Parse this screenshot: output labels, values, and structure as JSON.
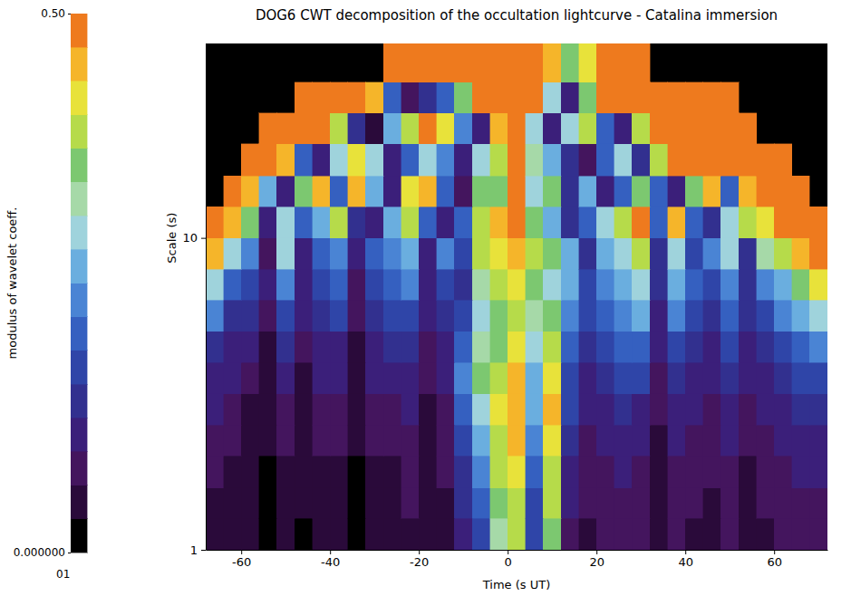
{
  "chart_data": {
    "type": "heatmap",
    "title": "DOG6 CWT decomposition of the occultation lightcurve - Catalina immersion",
    "x_label": "Time (s UT)",
    "y_label": "Scale (s)",
    "xlim": [
      -68,
      72
    ],
    "ylim": [
      1,
      42
    ],
    "xticks": [
      -60,
      -40,
      -20,
      0,
      20,
      40,
      60
    ],
    "yticks": [
      1,
      10
    ],
    "log": "y",
    "x_edges": [
      -68,
      -64,
      -60,
      -56,
      -52,
      -48,
      -44,
      -40,
      -36,
      -32,
      -28,
      -24,
      -20,
      -16,
      -12,
      -8,
      -4,
      0,
      4,
      8,
      12,
      16,
      20,
      24,
      28,
      32,
      36,
      40,
      44,
      48,
      52,
      56,
      60,
      64,
      68,
      72
    ],
    "y_edges": [
      1,
      1.26,
      1.58,
      2,
      2.51,
      3.16,
      3.98,
      5.01,
      6.31,
      7.94,
      10,
      12.6,
      15.8,
      20,
      25.1,
      31.6,
      42
    ],
    "z": [
      [
        0.05,
        0.05,
        0.04,
        0.03,
        0.05,
        0.03,
        0.05,
        0.05,
        0.03,
        0.05,
        0.05,
        0.06,
        0.04,
        0.05,
        0.12,
        0.18,
        0.32,
        0.38,
        0.16,
        0.35,
        0.09,
        0.06,
        0.07,
        0.08,
        0.07,
        0.04,
        0.07,
        0.06,
        0.05,
        0.07,
        0.05,
        0.06,
        0.07,
        0.08,
        0.08
      ],
      [
        0.06,
        0.05,
        0.04,
        0.03,
        0.05,
        0.04,
        0.05,
        0.05,
        0.03,
        0.05,
        0.05,
        0.07,
        0.04,
        0.06,
        0.13,
        0.2,
        0.35,
        0.4,
        0.18,
        0.38,
        0.1,
        0.07,
        0.08,
        0.09,
        0.08,
        0.05,
        0.08,
        0.07,
        0.06,
        0.08,
        0.05,
        0.07,
        0.08,
        0.09,
        0.09
      ],
      [
        0.07,
        0.06,
        0.05,
        0.03,
        0.06,
        0.04,
        0.06,
        0.06,
        0.03,
        0.06,
        0.06,
        0.08,
        0.05,
        0.07,
        0.15,
        0.22,
        0.38,
        0.42,
        0.2,
        0.4,
        0.12,
        0.08,
        0.09,
        0.1,
        0.09,
        0.05,
        0.09,
        0.08,
        0.07,
        0.09,
        0.06,
        0.08,
        0.09,
        0.1,
        0.1
      ],
      [
        0.08,
        0.07,
        0.05,
        0.04,
        0.07,
        0.04,
        0.07,
        0.07,
        0.04,
        0.07,
        0.07,
        0.09,
        0.05,
        0.08,
        0.18,
        0.25,
        0.4,
        0.44,
        0.22,
        0.42,
        0.14,
        0.09,
        0.1,
        0.12,
        0.1,
        0.06,
        0.1,
        0.09,
        0.08,
        0.1,
        0.07,
        0.09,
        0.1,
        0.12,
        0.12
      ],
      [
        0.1,
        0.08,
        0.06,
        0.04,
        0.08,
        0.05,
        0.08,
        0.08,
        0.04,
        0.08,
        0.08,
        0.1,
        0.06,
        0.09,
        0.2,
        0.3,
        0.42,
        0.45,
        0.25,
        0.44,
        0.16,
        0.1,
        0.12,
        0.14,
        0.12,
        0.07,
        0.12,
        0.1,
        0.09,
        0.12,
        0.08,
        0.1,
        0.12,
        0.14,
        0.15
      ],
      [
        0.12,
        0.1,
        0.08,
        0.05,
        0.1,
        0.06,
        0.1,
        0.1,
        0.05,
        0.1,
        0.1,
        0.12,
        0.07,
        0.1,
        0.22,
        0.35,
        0.4,
        0.45,
        0.28,
        0.42,
        0.18,
        0.12,
        0.15,
        0.16,
        0.16,
        0.08,
        0.15,
        0.12,
        0.1,
        0.14,
        0.1,
        0.12,
        0.15,
        0.16,
        0.18
      ],
      [
        0.15,
        0.12,
        0.1,
        0.06,
        0.14,
        0.08,
        0.12,
        0.12,
        0.06,
        0.12,
        0.13,
        0.15,
        0.08,
        0.12,
        0.2,
        0.32,
        0.36,
        0.42,
        0.3,
        0.38,
        0.2,
        0.14,
        0.18,
        0.2,
        0.2,
        0.1,
        0.18,
        0.15,
        0.12,
        0.16,
        0.12,
        0.15,
        0.18,
        0.2,
        0.22
      ],
      [
        0.22,
        0.15,
        0.14,
        0.08,
        0.18,
        0.1,
        0.14,
        0.16,
        0.08,
        0.15,
        0.16,
        0.18,
        0.1,
        0.15,
        0.18,
        0.3,
        0.35,
        0.4,
        0.32,
        0.35,
        0.22,
        0.16,
        0.2,
        0.22,
        0.25,
        0.12,
        0.22,
        0.18,
        0.15,
        0.2,
        0.14,
        0.18,
        0.22,
        0.25,
        0.3
      ],
      [
        0.3,
        0.2,
        0.18,
        0.1,
        0.22,
        0.1,
        0.18,
        0.2,
        0.08,
        0.16,
        0.2,
        0.22,
        0.12,
        0.18,
        0.15,
        0.32,
        0.38,
        0.42,
        0.35,
        0.3,
        0.25,
        0.18,
        0.22,
        0.26,
        0.3,
        0.15,
        0.25,
        0.2,
        0.18,
        0.24,
        0.15,
        0.22,
        0.28,
        0.35,
        0.42
      ],
      [
        0.45,
        0.3,
        0.22,
        0.08,
        0.3,
        0.12,
        0.2,
        0.22,
        0.1,
        0.2,
        0.22,
        0.28,
        0.12,
        0.22,
        0.18,
        0.38,
        0.42,
        0.45,
        0.4,
        0.35,
        0.28,
        0.15,
        0.25,
        0.3,
        0.38,
        0.15,
        0.3,
        0.18,
        0.22,
        0.3,
        0.15,
        0.32,
        0.38,
        0.45,
        0.5
      ],
      [
        0.5,
        0.45,
        0.35,
        0.12,
        0.3,
        0.2,
        0.25,
        0.38,
        0.15,
        0.1,
        0.25,
        0.38,
        0.2,
        0.1,
        0.2,
        0.4,
        0.45,
        0.48,
        0.35,
        0.28,
        0.15,
        0.2,
        0.3,
        0.4,
        0.47,
        0.2,
        0.46,
        0.2,
        0.15,
        0.3,
        0.38,
        0.42,
        0.48,
        0.5,
        0.5
      ],
      [
        null,
        0.5,
        0.45,
        0.25,
        0.1,
        0.35,
        0.45,
        0.2,
        0.45,
        0.25,
        0.1,
        0.42,
        0.45,
        0.2,
        0.08,
        0.35,
        0.36,
        0.5,
        0.3,
        0.35,
        0.15,
        0.25,
        0.1,
        0.2,
        0.35,
        0.2,
        0.1,
        0.35,
        0.45,
        0.2,
        0.45,
        0.48,
        0.5,
        0.5,
        null
      ],
      [
        null,
        null,
        0.5,
        0.5,
        0.45,
        0.2,
        0.1,
        0.3,
        0.42,
        0.3,
        0.1,
        0.2,
        0.3,
        0.22,
        0.1,
        0.3,
        0.38,
        0.5,
        0.32,
        0.28,
        0.15,
        0.08,
        0.2,
        0.3,
        0.15,
        0.4,
        0.5,
        0.5,
        0.5,
        0.5,
        0.5,
        0.5,
        0.5,
        null,
        null
      ],
      [
        null,
        null,
        null,
        0.5,
        0.5,
        0.5,
        0.48,
        0.4,
        0.15,
        0.06,
        0.25,
        0.4,
        0.47,
        0.42,
        0.22,
        0.1,
        0.45,
        0.5,
        0.3,
        0.12,
        0.3,
        0.38,
        0.2,
        0.1,
        0.4,
        0.5,
        0.5,
        0.5,
        0.5,
        0.5,
        0.5,
        null,
        null,
        null,
        null
      ],
      [
        null,
        null,
        null,
        null,
        null,
        0.5,
        0.5,
        0.5,
        0.5,
        0.45,
        0.2,
        0.08,
        0.15,
        0.2,
        0.35,
        0.5,
        0.5,
        0.5,
        0.5,
        0.3,
        0.12,
        0.35,
        0.5,
        0.5,
        0.5,
        0.5,
        0.5,
        0.5,
        0.5,
        0.5,
        null,
        null,
        null,
        null,
        null
      ],
      [
        null,
        null,
        null,
        null,
        null,
        null,
        null,
        null,
        null,
        null,
        0.5,
        0.5,
        0.5,
        0.5,
        0.48,
        0.5,
        0.5,
        0.5,
        0.5,
        0.46,
        0.35,
        0.42,
        0.5,
        0.5,
        0.5,
        null,
        null,
        null,
        null,
        null,
        null,
        null,
        null,
        null,
        null
      ]
    ],
    "colorbar": {
      "title": "modulus of wavelet coeff.",
      "range": [
        0,
        0.5
      ],
      "ticks": [
        {
          "value": 0,
          "label": "0.000000"
        },
        {
          "value": 0.5,
          "label": "0.50"
        }
      ],
      "extra_label": "01",
      "colors": [
        "#000000",
        "#2a0a3a",
        "#44155e",
        "#3b1f7a",
        "#32308f",
        "#2f45a8",
        "#3560c0",
        "#4a84d4",
        "#6aaedf",
        "#9fd3dc",
        "#a6d9a8",
        "#7cc870",
        "#b6db4a",
        "#e8e23a",
        "#f5b52a",
        "#ee7a1e"
      ]
    }
  }
}
